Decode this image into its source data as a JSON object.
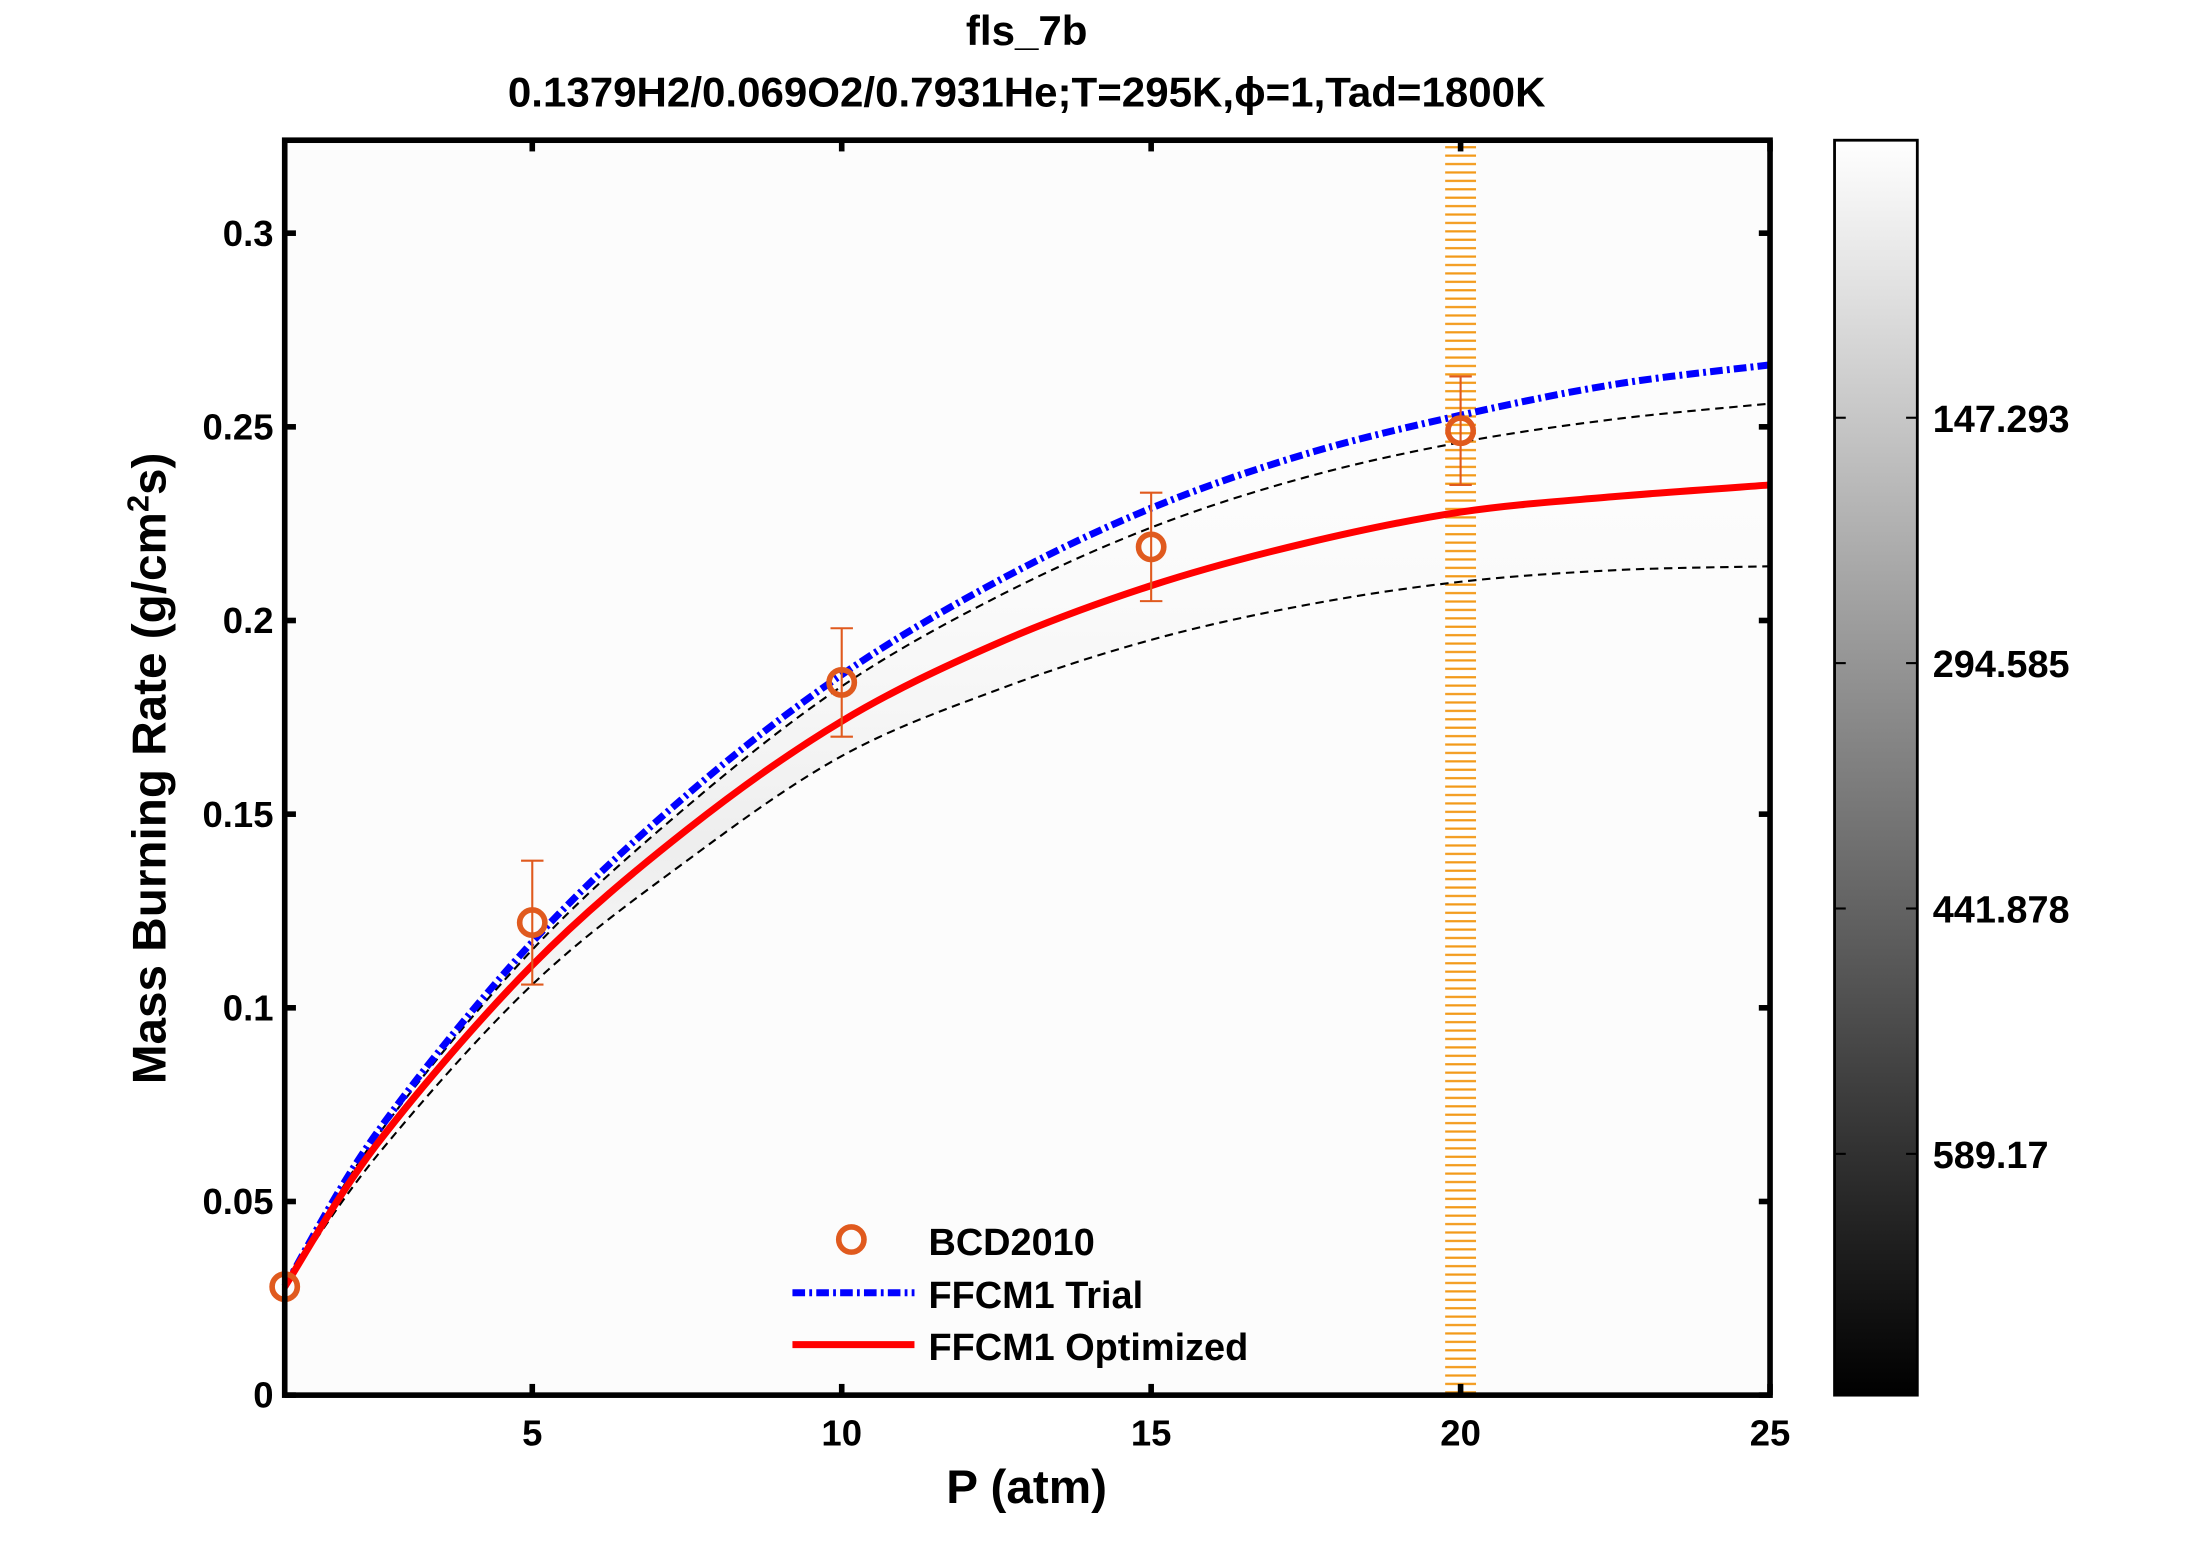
{
  "chart_data": {
    "type": "line",
    "title": "fls_7b",
    "subtitle": "0.1379H2/0.069O2/0.7931He;T=295K,ϕ=1,Tad=1800K",
    "xlabel": "P (atm)",
    "ylabel": "Mass Burning Rate (g/cm²s)",
    "xlim": [
      1,
      25
    ],
    "ylim": [
      0,
      0.324
    ],
    "xticks": [
      "5",
      "10",
      "15",
      "20",
      "25"
    ],
    "xtick_values": [
      5,
      10,
      15,
      20,
      25
    ],
    "yticks": [
      "0",
      "0.05",
      "0.1",
      "0.15",
      "0.2",
      "0.25",
      "0.3"
    ],
    "ytick_values": [
      0,
      0.05,
      0.1,
      0.15,
      0.2,
      0.25,
      0.3
    ],
    "grid": false,
    "legend_placement": "bottom-center",
    "highlight_band_x": 20,
    "colors": {
      "data": "#e05a1e",
      "trial": "#0000ff",
      "optimized": "#ff0000",
      "bounds": "#000000",
      "band": "#f39a1a"
    },
    "series": [
      {
        "name": "BCD2010",
        "kind": "scatter",
        "x": [
          1,
          5,
          10,
          15,
          20
        ],
        "y": [
          0.028,
          0.122,
          0.184,
          0.219,
          0.249
        ],
        "err_low": [
          0.028,
          0.106,
          0.17,
          0.205,
          0.235
        ],
        "err_high": [
          0.028,
          0.138,
          0.198,
          0.233,
          0.263
        ]
      },
      {
        "name": "FFCM1 Trial",
        "kind": "line",
        "x": [
          1,
          2.5,
          5,
          7.5,
          10,
          12.5,
          15,
          17.5,
          20,
          22.5,
          25
        ],
        "y": [
          0.028,
          0.068,
          0.117,
          0.155,
          0.186,
          0.21,
          0.229,
          0.243,
          0.253,
          0.261,
          0.266
        ]
      },
      {
        "name": "FFCM1 Optimized",
        "kind": "line",
        "x": [
          1,
          2.5,
          5,
          7.5,
          10,
          12.5,
          15,
          17.5,
          20,
          22.5,
          25
        ],
        "y": [
          0.028,
          0.065,
          0.111,
          0.146,
          0.174,
          0.194,
          0.209,
          0.22,
          0.228,
          0.232,
          0.235
        ]
      },
      {
        "kind": "bound",
        "x": [
          1,
          2.5,
          5,
          7.5,
          10,
          12.5,
          15,
          17.5,
          20,
          22.5,
          25
        ],
        "y": [
          0.028,
          0.067,
          0.115,
          0.152,
          0.183,
          0.206,
          0.224,
          0.237,
          0.246,
          0.252,
          0.256
        ]
      },
      {
        "kind": "bound",
        "x": [
          1,
          2.5,
          5,
          7.5,
          10,
          12.5,
          15,
          17.5,
          20,
          22.5,
          25
        ],
        "y": [
          0.028,
          0.062,
          0.106,
          0.138,
          0.165,
          0.182,
          0.195,
          0.204,
          0.21,
          0.213,
          0.214
        ]
      }
    ],
    "colorbar": {
      "ticks": [
        "147.293",
        "294.585",
        "441.878",
        "589.17"
      ],
      "tick_values": [
        147.293,
        294.585,
        441.878,
        589.17
      ],
      "range": [
        -19.3,
        734
      ],
      "colormap": "gray, white at top"
    }
  }
}
